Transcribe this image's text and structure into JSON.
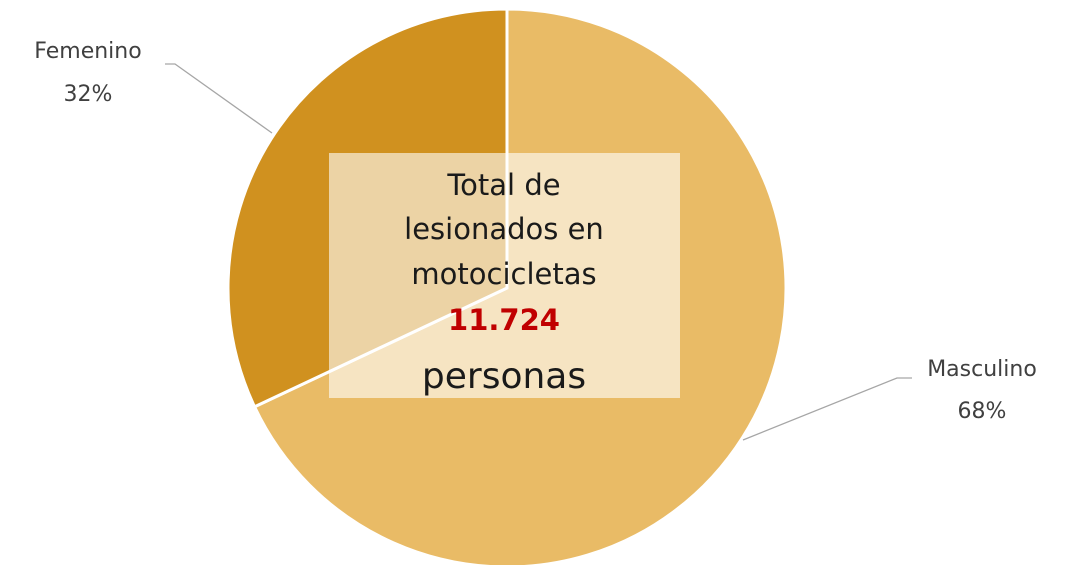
{
  "chart_data": {
    "type": "pie",
    "categories": [
      "Masculino",
      "Femenino"
    ],
    "values": [
      68,
      32
    ],
    "value_labels": [
      "68%",
      "32%"
    ],
    "colors": [
      "#e9bb66",
      "#d0911f"
    ],
    "center_text": [
      "Total de",
      "lesionados en",
      "motocicletas",
      "11.724",
      "personas"
    ],
    "center_highlight_color": "#c00000"
  }
}
